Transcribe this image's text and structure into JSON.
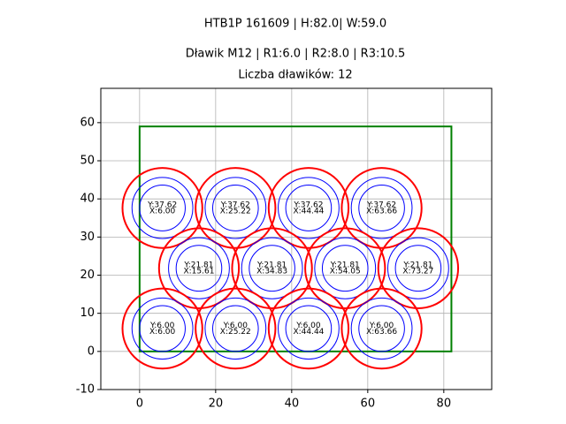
{
  "chart_data": {
    "type": "circles",
    "title": "HTB1P 161609 | H:82.0| W:59.0",
    "subtitle": "Dławik M12 | R1:6.0 | R2:8.0 | R3:10.5",
    "annotation": "Liczba dławików: 12",
    "x": [
      6,
      25.22,
      44.44,
      63.66,
      15.61,
      34.83,
      54.05,
      73.27,
      6,
      25.22,
      44.44,
      63.66
    ],
    "y": [
      37.62,
      37.62,
      37.62,
      37.62,
      21.81,
      21.81,
      21.81,
      21.81,
      6,
      6,
      6,
      6
    ],
    "x_labels": [
      "X:6.00",
      "X:25.22",
      "X:44.44",
      "X:63.66",
      "X:15.61",
      "X:34.83",
      "X:54.05",
      "X:73.27",
      "X:6.00",
      "X:25.22",
      "X:44.44",
      "X:63.66"
    ],
    "y_labels": [
      "Y:37.62",
      "Y:37.62",
      "Y:37.62",
      "Y:37.62",
      "Y:21.81",
      "Y:21.81",
      "Y:21.81",
      "Y:21.81",
      "Y:6.00",
      "Y:6.00",
      "Y:6.00",
      "Y:6.00"
    ],
    "radii": [
      6,
      8,
      10.5
    ],
    "radius_colors": [
      "#0000ff",
      "#0000ff",
      "#ff0000"
    ],
    "frame": {
      "x": [
        0,
        82
      ],
      "y": [
        0,
        59
      ],
      "color": "#008000"
    },
    "xlim": [
      -10.2,
      92.6
    ],
    "ylim": [
      -10,
      69
    ],
    "xticks": [
      0,
      20,
      40,
      60,
      80
    ],
    "yticks": [
      -10,
      0,
      10,
      20,
      30,
      40,
      50,
      60
    ],
    "grid": true
  }
}
